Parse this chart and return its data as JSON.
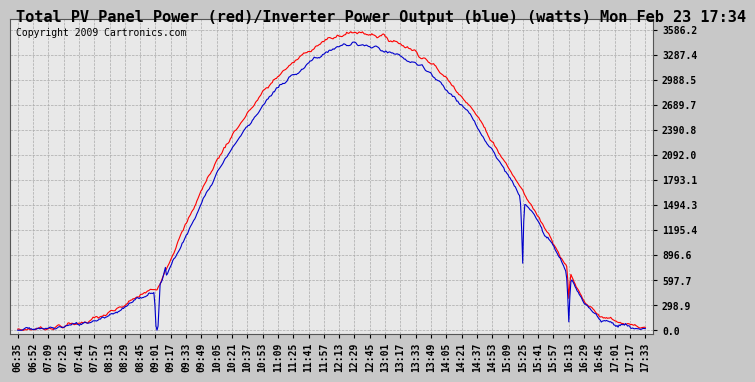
{
  "title": "Total PV Panel Power (red)/Inverter Power Output (blue) (watts) Mon Feb 23 17:34",
  "copyright": "Copyright 2009 Cartronics.com",
  "background_color": "#c8c8c8",
  "plot_bg_color": "#e8e8e8",
  "grid_color": "#aaaaaa",
  "ytick_labels": [
    "0.0",
    "298.9",
    "597.7",
    "896.6",
    "1195.4",
    "1494.3",
    "1793.1",
    "2092.0",
    "2390.8",
    "2689.7",
    "2988.5",
    "3287.4",
    "3586.2"
  ],
  "ytick_values": [
    0.0,
    298.9,
    597.7,
    896.6,
    1195.4,
    1494.3,
    1793.1,
    2092.0,
    2390.8,
    2689.7,
    2988.5,
    3287.4,
    3586.2
  ],
  "ylim": [
    -40,
    3720
  ],
  "red_color": "#ff0000",
  "blue_color": "#0000cc",
  "title_fontsize": 11,
  "tick_fontsize": 7,
  "copyright_fontsize": 7,
  "xtick_labels": [
    "06:35",
    "06:52",
    "07:09",
    "07:25",
    "07:41",
    "07:57",
    "08:13",
    "08:29",
    "08:45",
    "09:01",
    "09:17",
    "09:33",
    "09:49",
    "10:05",
    "10:21",
    "10:37",
    "10:53",
    "11:09",
    "11:25",
    "11:41",
    "11:57",
    "12:13",
    "12:29",
    "12:45",
    "13:01",
    "13:17",
    "13:33",
    "13:49",
    "14:05",
    "14:21",
    "14:37",
    "14:53",
    "15:09",
    "15:25",
    "15:41",
    "15:57",
    "16:13",
    "16:29",
    "16:45",
    "17:01",
    "17:17",
    "17:33"
  ]
}
